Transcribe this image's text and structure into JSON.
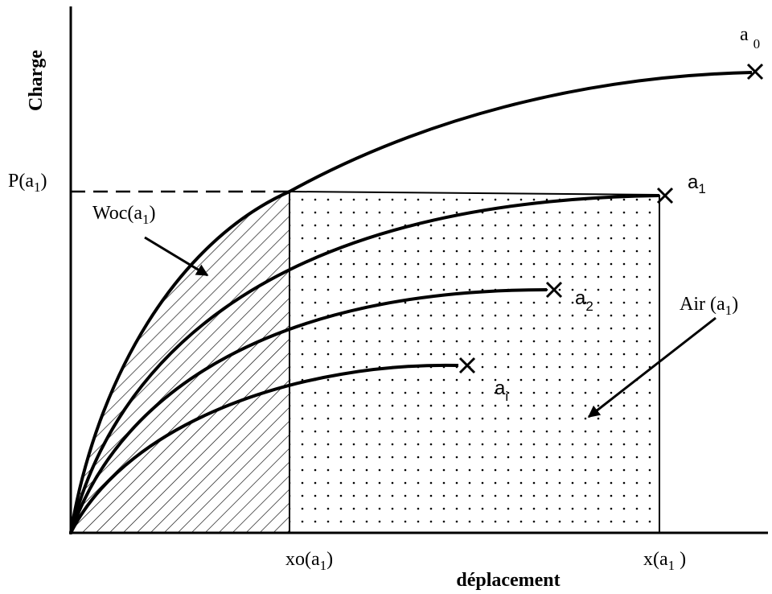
{
  "axes": {
    "y_label": "Charge",
    "x_label": "déplacement"
  },
  "labels": [
    {
      "text": "P(a",
      "sub": "1",
      "after": ")"
    },
    {
      "text": "Woc(a",
      "sub": "1",
      "after": ")"
    },
    {
      "text": "Air (a",
      "sub": "1",
      "after": ")"
    },
    {
      "text": "xo(a",
      "sub": "1",
      "after": ")"
    },
    {
      "text": "x(a",
      "sub": "1",
      "after": " )"
    },
    {
      "text": "a",
      "sub": "0"
    },
    {
      "text": "a",
      "sub": "1"
    },
    {
      "text": "a",
      "sub": "2"
    },
    {
      "text": "a",
      "sub": "i"
    }
  ]
}
